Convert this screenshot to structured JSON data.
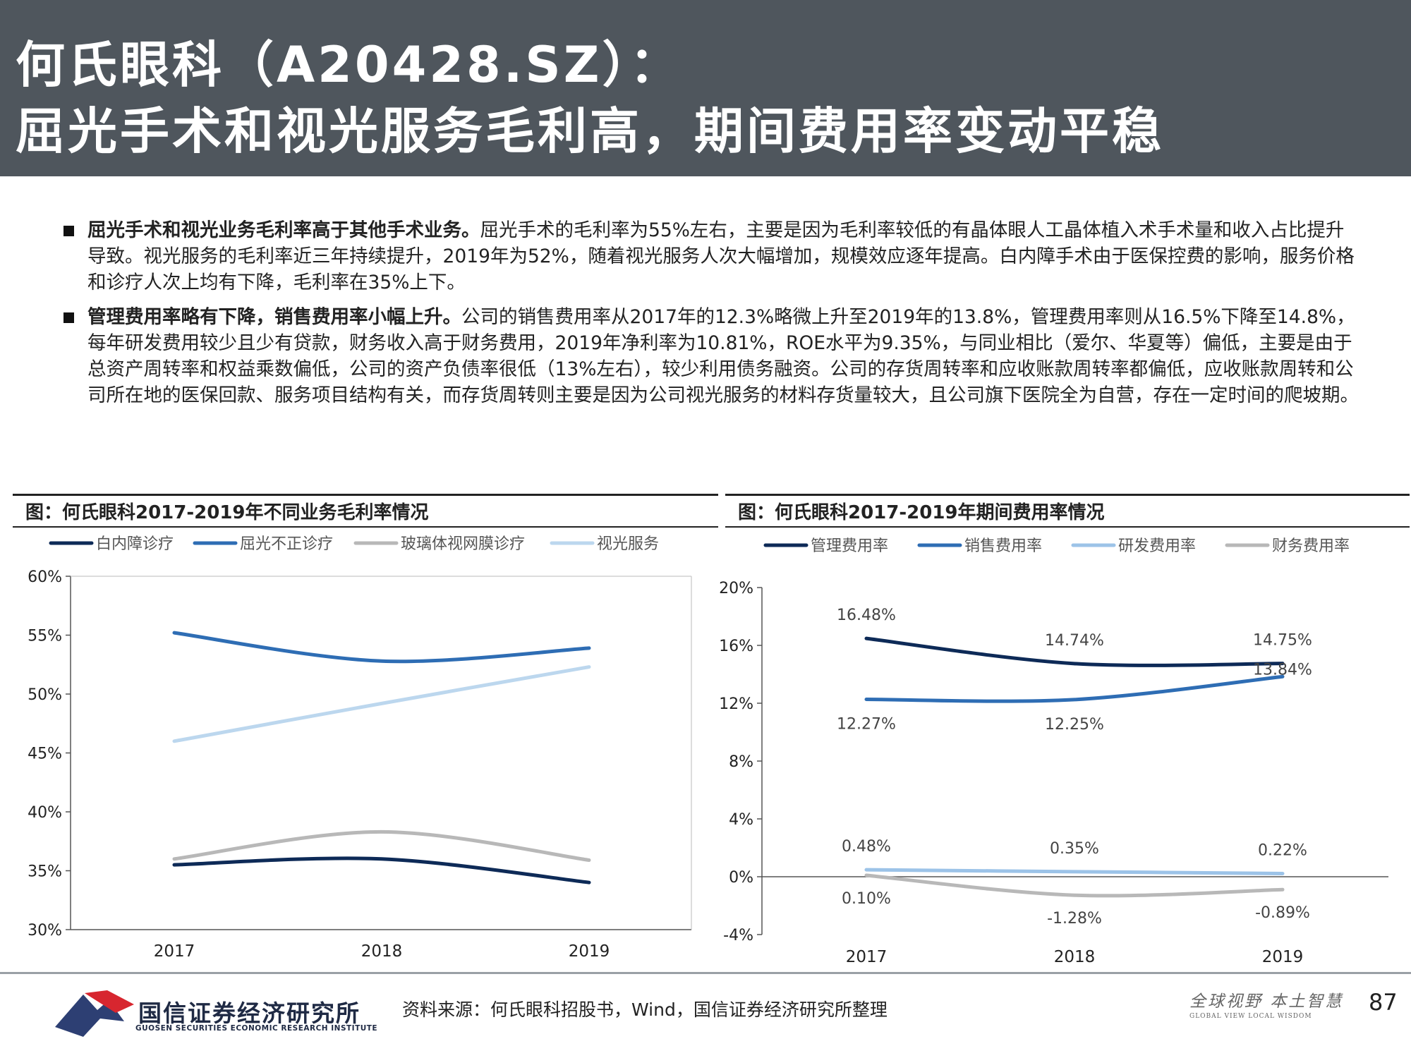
{
  "header": {
    "title_line1": "何氏眼科（A20428.SZ）：",
    "title_line2": "屈光手术和视光服务毛利高，期间费用率变动平稳"
  },
  "bullets": [
    {
      "bold": "屈光手术和视光业务毛利率高于其他手术业务。",
      "text": "屈光手术的毛利率为55%左右，主要是因为毛利率较低的有晶体眼人工晶体植入术手术量和收入占比提升导致。视光服务的毛利率近三年持续提升，2019年为52%，随着视光服务人次大幅增加，规模效应逐年提高。白内障手术由于医保控费的影响，服务价格和诊疗人次上均有下降，毛利率在35%上下。"
    },
    {
      "bold": "管理费用率略有下降，销售费用率小幅上升。",
      "text": "公司的销售费用率从2017年的12.3%略微上升至2019年的13.8%，管理费用率则从16.5%下降至14.8%，每年研发费用较少且少有贷款，财务收入高于财务费用，2019年净利率为10.81%，ROE水平为9.35%，与同业相比（爱尔、华夏等）偏低，主要是由于总资产周转率和权益乘数偏低，公司的资产负债率很低（13%左右），较少利用债务融资。公司的存货周转率和应收账款周转率都偏低，应收账款周转和公司所在地的医保回款、服务项目结构有关，而存货周转则主要是因为公司视光服务的材料存货量较大，且公司旗下医院全为自营，存在一定时间的爬坡期。"
    }
  ],
  "chart_titles": {
    "left": "图：何氏眼科2017-2019年不同业务毛利率情况",
    "right": "图：何氏眼科2017-2019年期间费用率情况"
  },
  "chart_data": [
    {
      "type": "line",
      "categories": [
        "2017",
        "2018",
        "2019"
      ],
      "series": [
        {
          "name": "白内障诊疗",
          "values": [
            35.5,
            36.0,
            34.0
          ],
          "color": "#0d2a57"
        },
        {
          "name": "屈光不正诊疗",
          "values": [
            55.2,
            52.8,
            53.9
          ],
          "color": "#2e6db4"
        },
        {
          "name": "玻璃体视网膜诊疗",
          "values": [
            36.0,
            38.3,
            35.9
          ],
          "color": "#b8b8b8"
        },
        {
          "name": "视光服务",
          "values": [
            46.0,
            49.2,
            52.3
          ],
          "color": "#bcd7ee"
        }
      ],
      "yticks": [
        "60%",
        "55%",
        "50%",
        "45%",
        "40%",
        "35%",
        "30%"
      ],
      "ylim": [
        30,
        60
      ],
      "grid": false,
      "legend": "top"
    },
    {
      "type": "line",
      "categories": [
        "2017",
        "2018",
        "2019"
      ],
      "series": [
        {
          "name": "管理费用率",
          "values": [
            16.48,
            14.74,
            14.75
          ],
          "labels": [
            "16.48%",
            "14.74%",
            "14.75%"
          ],
          "color": "#0d2a57"
        },
        {
          "name": "销售费用率",
          "values": [
            12.27,
            12.25,
            13.84
          ],
          "labels": [
            "12.27%",
            "12.25%",
            "13.84%"
          ],
          "color": "#2e6db4"
        },
        {
          "name": "研发费用率",
          "values": [
            0.48,
            0.35,
            0.22
          ],
          "labels": [
            "0.48%",
            "0.35%",
            "0.22%"
          ],
          "color": "#9cc3e8"
        },
        {
          "name": "财务费用率",
          "values": [
            0.1,
            -1.28,
            -0.89
          ],
          "labels": [
            "0.10%",
            "-1.28%",
            "-0.89%"
          ],
          "color": "#b8b8b8"
        }
      ],
      "yticks": [
        "20%",
        "16%",
        "12%",
        "8%",
        "4%",
        "0%",
        "-4%"
      ],
      "ylim": [
        -4,
        20
      ],
      "grid": false,
      "legend": "top"
    }
  ],
  "footer": {
    "logo_name": "国信证券经济研究所",
    "logo_sub": "GUOSEN SECURITIES ECONOMIC RESEARCH INSTITUTE",
    "source": "资料来源：何氏眼科招股书，Wind，国信证券经济研究所整理",
    "slogan_cn": "全球视野 本土智慧",
    "slogan_en": "GLOBAL VIEW   LOCAL WISDOM",
    "page": "87"
  }
}
